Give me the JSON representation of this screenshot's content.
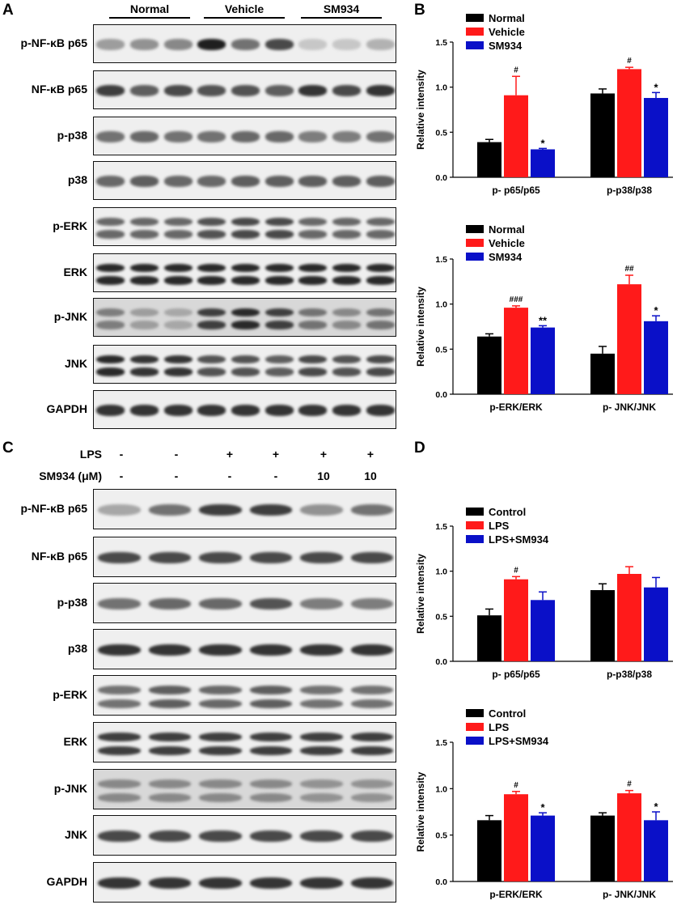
{
  "panels": {
    "a": "A",
    "b": "B",
    "c": "C",
    "d": "D"
  },
  "panel_a": {
    "groups": [
      "Normal",
      "Vehicle",
      "SM934"
    ],
    "blots": [
      {
        "label": "p-NF-κB p65",
        "lane_intensity": [
          0.35,
          0.4,
          0.45,
          0.95,
          0.55,
          0.75,
          0.15,
          0.15,
          0.25
        ],
        "bands": 1
      },
      {
        "label": "NF-κB p65",
        "lane_intensity": [
          0.8,
          0.65,
          0.75,
          0.7,
          0.7,
          0.65,
          0.85,
          0.75,
          0.85
        ],
        "bands": 1
      },
      {
        "label": "p-p38",
        "lane_intensity": [
          0.55,
          0.6,
          0.55,
          0.55,
          0.6,
          0.6,
          0.5,
          0.5,
          0.55
        ],
        "bands": 1
      },
      {
        "label": "p38",
        "lane_intensity": [
          0.6,
          0.65,
          0.6,
          0.6,
          0.65,
          0.65,
          0.65,
          0.65,
          0.65
        ],
        "bands": 1
      },
      {
        "label": "p-ERK",
        "lane_intensity": [
          0.6,
          0.6,
          0.6,
          0.7,
          0.75,
          0.75,
          0.6,
          0.6,
          0.6
        ],
        "bands": 2
      },
      {
        "label": "ERK",
        "lane_intensity": [
          0.9,
          0.9,
          0.9,
          0.9,
          0.9,
          0.9,
          0.9,
          0.9,
          0.9
        ],
        "bands": 2
      },
      {
        "label": "p-JNK",
        "lane_intensity": [
          0.5,
          0.35,
          0.3,
          0.8,
          0.9,
          0.8,
          0.55,
          0.45,
          0.55
        ],
        "bands": 2
      },
      {
        "label": "JNK",
        "lane_intensity": [
          0.9,
          0.85,
          0.85,
          0.7,
          0.7,
          0.65,
          0.75,
          0.7,
          0.75
        ],
        "bands": 2
      },
      {
        "label": "GAPDH",
        "lane_intensity": [
          0.85,
          0.85,
          0.85,
          0.85,
          0.85,
          0.85,
          0.85,
          0.85,
          0.85
        ],
        "bands": 1
      }
    ]
  },
  "panel_c": {
    "row_labels": [
      "LPS",
      "SM934 (μM)"
    ],
    "lps": [
      "-",
      "-",
      "+",
      "+",
      "+",
      "+"
    ],
    "sm934": [
      "-",
      "-",
      "-",
      "-",
      "10",
      "10"
    ],
    "blots": [
      {
        "label": "p-NF-κB p65",
        "lane_intensity": [
          0.3,
          0.55,
          0.8,
          0.8,
          0.4,
          0.55
        ],
        "bands": 1
      },
      {
        "label": "NF-κB p65",
        "lane_intensity": [
          0.75,
          0.75,
          0.75,
          0.75,
          0.75,
          0.75
        ],
        "bands": 1
      },
      {
        "label": "p-p38",
        "lane_intensity": [
          0.55,
          0.6,
          0.6,
          0.7,
          0.5,
          0.5
        ],
        "bands": 1
      },
      {
        "label": "p38",
        "lane_intensity": [
          0.85,
          0.85,
          0.85,
          0.85,
          0.85,
          0.85
        ],
        "bands": 1
      },
      {
        "label": "p-ERK",
        "lane_intensity": [
          0.55,
          0.65,
          0.6,
          0.65,
          0.55,
          0.55
        ],
        "bands": 2
      },
      {
        "label": "ERK",
        "lane_intensity": [
          0.8,
          0.8,
          0.8,
          0.8,
          0.8,
          0.8
        ],
        "bands": 2
      },
      {
        "label": "p-JNK",
        "lane_intensity": [
          0.45,
          0.45,
          0.45,
          0.45,
          0.4,
          0.4
        ],
        "bands": 2
      },
      {
        "label": "JNK",
        "lane_intensity": [
          0.75,
          0.75,
          0.75,
          0.75,
          0.75,
          0.75
        ],
        "bands": 1
      },
      {
        "label": "GAPDH",
        "lane_intensity": [
          0.85,
          0.85,
          0.85,
          0.85,
          0.85,
          0.85
        ],
        "bands": 1
      }
    ]
  },
  "colors": {
    "series1": "#000000",
    "series2": "#ff1a1a",
    "series3": "#0a10c8"
  },
  "chart_data": [
    {
      "id": "B-top",
      "type": "bar",
      "ylabel": "Relative intensity",
      "ylim": [
        0,
        1.5
      ],
      "yticks": [
        "0.0",
        "0.5",
        "1.0",
        "1.5"
      ],
      "legend_position": "top-left",
      "categories": [
        "p- p65/p65",
        "p-p38/p38"
      ],
      "series": [
        {
          "name": "Normal",
          "values": [
            0.39,
            0.93
          ],
          "errors": [
            0.03,
            0.05
          ],
          "marks": [
            "",
            ""
          ]
        },
        {
          "name": "Vehicle",
          "values": [
            0.91,
            1.2
          ],
          "errors": [
            0.21,
            0.02
          ],
          "marks": [
            "#",
            "#"
          ]
        },
        {
          "name": "SM934",
          "values": [
            0.31,
            0.88
          ],
          "errors": [
            0.01,
            0.06
          ],
          "marks": [
            "*",
            "*"
          ]
        }
      ]
    },
    {
      "id": "B-bottom",
      "type": "bar",
      "ylabel": "Relative intensity",
      "ylim": [
        0,
        1.5
      ],
      "yticks": [
        "0.0",
        "0.5",
        "1.0",
        "1.5"
      ],
      "legend_position": "top-left",
      "categories": [
        "p-ERK/ERK",
        "p- JNK/JNK"
      ],
      "series": [
        {
          "name": "Normal",
          "values": [
            0.64,
            0.45
          ],
          "errors": [
            0.03,
            0.08
          ],
          "marks": [
            "",
            ""
          ]
        },
        {
          "name": "Vehicle",
          "values": [
            0.96,
            1.22
          ],
          "errors": [
            0.02,
            0.1
          ],
          "marks": [
            "###",
            "##"
          ]
        },
        {
          "name": "SM934",
          "values": [
            0.74,
            0.81
          ],
          "errors": [
            0.02,
            0.06
          ],
          "marks": [
            "**",
            "*"
          ]
        }
      ]
    },
    {
      "id": "D-top",
      "type": "bar",
      "ylabel": "Relative intensity",
      "ylim": [
        0,
        1.5
      ],
      "yticks": [
        "0.0",
        "0.5",
        "1.0",
        "1.5"
      ],
      "legend_position": "top-left",
      "categories": [
        "p- p65/p65",
        "p-p38/p38"
      ],
      "series": [
        {
          "name": "Control",
          "values": [
            0.51,
            0.79
          ],
          "errors": [
            0.07,
            0.07
          ],
          "marks": [
            "",
            ""
          ]
        },
        {
          "name": "LPS",
          "values": [
            0.91,
            0.97
          ],
          "errors": [
            0.03,
            0.08
          ],
          "marks": [
            "#",
            ""
          ]
        },
        {
          "name": "LPS+SM934",
          "values": [
            0.68,
            0.82
          ],
          "errors": [
            0.09,
            0.11
          ],
          "marks": [
            "",
            ""
          ]
        }
      ]
    },
    {
      "id": "D-bottom",
      "type": "bar",
      "ylabel": "Relative intensity",
      "ylim": [
        0,
        1.5
      ],
      "yticks": [
        "0.0",
        "0.5",
        "1.0",
        "1.5"
      ],
      "legend_position": "top-left",
      "categories": [
        "p-ERK/ERK",
        "p- JNK/JNK"
      ],
      "series": [
        {
          "name": "Control",
          "values": [
            0.66,
            0.71
          ],
          "errors": [
            0.05,
            0.03
          ],
          "marks": [
            "",
            ""
          ]
        },
        {
          "name": "LPS",
          "values": [
            0.94,
            0.95
          ],
          "errors": [
            0.03,
            0.03
          ],
          "marks": [
            "#",
            "#"
          ]
        },
        {
          "name": "LPS+SM934",
          "values": [
            0.71,
            0.66
          ],
          "errors": [
            0.03,
            0.09
          ],
          "marks": [
            "*",
            "*"
          ]
        }
      ]
    }
  ]
}
